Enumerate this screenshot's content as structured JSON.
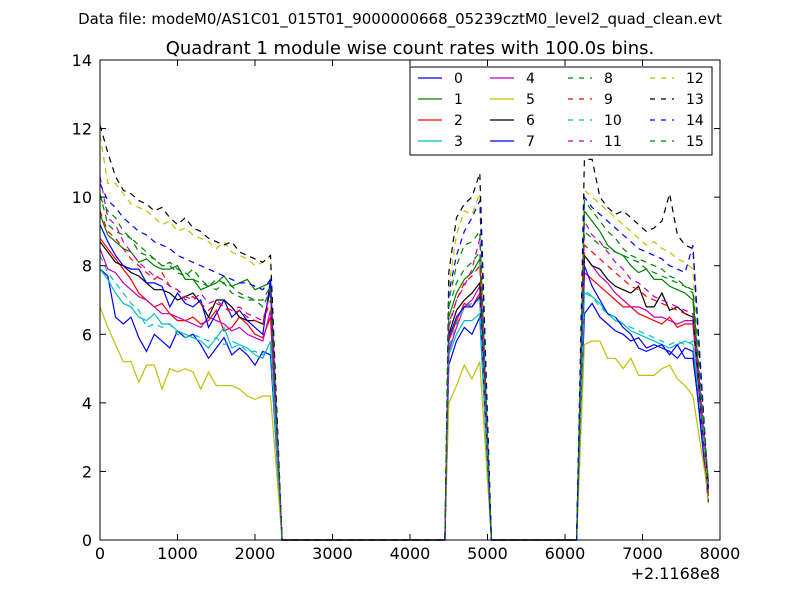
{
  "figure": {
    "suptitle": "Data file: modeM0/AS1C01_015T01_9000000668_05239cztM0_level2_quad_clean.evt",
    "offset_label": "+2.1168e8"
  },
  "chart_data": {
    "type": "line",
    "title": "Quadrant 1 module wise count rates with 100.0s bins.",
    "xlabel": "",
    "ylabel": "",
    "xlim": [
      0,
      8000
    ],
    "ylim": [
      0,
      14
    ],
    "x_ticks": [
      0,
      1000,
      2000,
      3000,
      4000,
      5000,
      6000,
      7000,
      8000
    ],
    "y_ticks": [
      0,
      2,
      4,
      6,
      8,
      10,
      12,
      14
    ],
    "x_offset": "+2.1168e8",
    "grid": false,
    "legend_position": "top-right",
    "legend_columns": 4,
    "segments": [
      {
        "start": 0,
        "n": 23,
        "step": 100,
        "drop_to": 2350
      },
      {
        "start": 4500,
        "n": 5,
        "step": 100,
        "rise_from": 4450,
        "drop_to": 5050
      },
      {
        "start": 6250,
        "n": 15,
        "step": 100,
        "rise_from": 6150,
        "drop_to": 7850
      }
    ],
    "series": [
      {
        "name": "0",
        "color": "#0000ff",
        "dash": false,
        "values": [
          [
            7.9,
            7.7,
            6.5,
            6.3,
            6.5,
            5.9,
            5.5,
            6.0,
            5.8,
            5.6,
            6.1,
            5.9,
            6.0,
            5.7,
            5.3,
            5.6,
            5.9,
            5.4,
            5.6,
            5.4,
            5.1,
            5.5,
            5.4
          ],
          [
            5.1,
            5.8,
            6.2,
            6.0,
            6.5
          ],
          [
            6.6,
            6.9,
            6.5,
            6.3,
            6.1,
            6.0,
            5.8,
            5.9,
            5.6,
            5.7,
            5.6,
            5.5,
            5.3,
            5.6,
            5.5
          ]
        ]
      },
      {
        "name": "1",
        "color": "#008000",
        "dash": false,
        "values": [
          [
            9.5,
            8.9,
            8.7,
            8.5,
            8.4,
            8.1,
            8.2,
            8.0,
            7.9,
            7.9,
            8.0,
            7.6,
            7.6,
            7.3,
            7.4,
            7.5,
            7.7,
            7.4,
            7.5,
            7.6,
            7.3,
            7.4,
            7.5
          ],
          [
            6.5,
            7.2,
            7.6,
            7.8,
            8.2
          ],
          [
            9.6,
            9.3,
            9.0,
            8.6,
            8.4,
            8.3,
            8.0,
            7.8,
            7.9,
            7.6,
            7.6,
            7.4,
            7.3,
            7.2,
            7.0
          ]
        ]
      },
      {
        "name": "2",
        "color": "#ff0000",
        "dash": false,
        "values": [
          [
            8.8,
            8.5,
            8.2,
            7.9,
            7.6,
            7.2,
            7.0,
            6.8,
            6.9,
            6.6,
            6.4,
            6.4,
            6.5,
            6.3,
            6.4,
            6.7,
            6.1,
            6.2,
            6.5,
            6.3,
            6.0,
            5.9,
            6.5
          ],
          [
            5.8,
            6.4,
            6.9,
            6.8,
            7.2
          ],
          [
            7.8,
            7.6,
            7.4,
            7.2,
            7.0,
            6.8,
            6.8,
            6.6,
            6.5,
            6.4,
            6.3,
            6.5,
            6.2,
            6.3,
            6.3
          ]
        ]
      },
      {
        "name": "3",
        "color": "#00bfbf",
        "dash": false,
        "values": [
          [
            7.9,
            7.6,
            7.2,
            6.9,
            6.8,
            6.5,
            6.4,
            6.6,
            6.3,
            6.3,
            6.1,
            6.0,
            5.9,
            5.8,
            5.6,
            5.9,
            6.2,
            5.6,
            5.7,
            5.6,
            5.4,
            5.3,
            5.8
          ],
          [
            5.4,
            6.0,
            6.4,
            6.4,
            6.6
          ],
          [
            7.2,
            7.1,
            6.9,
            6.6,
            6.4,
            6.3,
            6.1,
            6.0,
            5.9,
            5.8,
            5.7,
            5.6,
            5.7,
            5.8,
            5.7
          ]
        ]
      },
      {
        "name": "4",
        "color": "#bf00bf",
        "dash": false,
        "values": [
          [
            8.5,
            7.9,
            7.8,
            7.5,
            7.3,
            7.1,
            7.0,
            6.8,
            6.6,
            6.6,
            6.5,
            6.4,
            6.3,
            6.2,
            6.5,
            6.4,
            6.3,
            6.1,
            6.2,
            6.0,
            5.9,
            5.8,
            6.7
          ],
          [
            5.5,
            6.2,
            6.8,
            7.0,
            7.4
          ],
          [
            8.3,
            8.0,
            7.7,
            7.5,
            7.2,
            7.0,
            6.8,
            6.8,
            6.7,
            6.5,
            6.5,
            6.4,
            6.3,
            6.4,
            6.4
          ]
        ]
      },
      {
        "name": "5",
        "color": "#bfbf00",
        "dash": false,
        "values": [
          [
            6.8,
            6.2,
            5.7,
            5.2,
            5.2,
            4.6,
            5.1,
            5.1,
            4.4,
            5.0,
            4.9,
            5.0,
            4.9,
            4.4,
            4.9,
            4.5,
            4.5,
            4.5,
            4.4,
            4.2,
            4.1,
            4.2,
            4.2
          ],
          [
            4.0,
            4.5,
            5.1,
            4.7,
            5.2
          ],
          [
            5.7,
            5.8,
            5.8,
            5.3,
            5.3,
            5.0,
            5.3,
            4.8,
            4.8,
            4.8,
            5.0,
            5.1,
            4.7,
            4.5,
            4.2
          ]
        ]
      },
      {
        "name": "6",
        "color": "#000000",
        "dash": false,
        "values": [
          [
            8.7,
            8.4,
            8.1,
            8.0,
            7.8,
            7.7,
            7.5,
            7.3,
            7.3,
            7.2,
            7.0,
            7.1,
            7.2,
            6.9,
            6.5,
            7.0,
            7.0,
            6.8,
            6.5,
            6.4,
            6.4,
            6.3,
            7.3
          ],
          [
            6.0,
            6.7,
            7.0,
            7.2,
            7.5
          ],
          [
            8.3,
            8.0,
            7.9,
            7.6,
            7.4,
            7.3,
            7.2,
            7.4,
            6.8,
            6.8,
            7.2,
            6.7,
            6.8,
            6.6,
            6.5
          ]
        ]
      },
      {
        "name": "7",
        "color": "#0000ff",
        "dash": false,
        "values": [
          [
            9.2,
            8.7,
            8.3,
            8.0,
            7.9,
            7.9,
            7.5,
            7.5,
            7.4,
            6.8,
            7.2,
            6.9,
            6.8,
            7.0,
            6.2,
            6.6,
            7.0,
            6.5,
            6.7,
            6.4,
            6.2,
            6.0,
            7.6
          ],
          [
            5.9,
            6.5,
            6.8,
            6.8,
            7.1
          ],
          [
            8.0,
            7.4,
            7.0,
            6.6,
            6.5,
            6.2,
            6.0,
            5.6,
            5.5,
            5.6,
            5.7,
            5.4,
            5.7,
            5.3,
            5.3
          ]
        ]
      },
      {
        "name": "8",
        "color": "#008000",
        "dash": true,
        "values": [
          [
            10.1,
            9.2,
            9.0,
            8.9,
            8.8,
            8.4,
            8.3,
            8.2,
            8.0,
            8.0,
            7.8,
            7.7,
            7.9,
            7.6,
            7.4,
            7.6,
            7.5,
            7.4,
            7.2,
            7.1,
            7.0,
            7.0,
            7.4
          ],
          [
            6.8,
            7.5,
            7.9,
            8.1,
            8.4
          ],
          [
            9.0,
            8.8,
            8.6,
            8.5,
            8.4,
            8.3,
            8.2,
            8.1,
            7.9,
            7.8,
            7.7,
            7.6,
            7.5,
            7.4,
            7.2
          ]
        ]
      },
      {
        "name": "9",
        "color": "#ff0000",
        "dash": true,
        "values": [
          [
            9.6,
            9.0,
            8.8,
            8.5,
            8.2,
            8.0,
            7.8,
            7.6,
            7.8,
            7.4,
            7.3,
            7.0,
            7.1,
            6.9,
            6.7,
            6.9,
            6.8,
            6.6,
            6.7,
            6.5,
            6.4,
            6.3,
            7.0
          ],
          [
            6.3,
            7.0,
            7.5,
            7.7,
            8.0
          ],
          [
            8.6,
            8.4,
            8.2,
            8.0,
            7.8,
            7.6,
            7.4,
            7.3,
            7.1,
            7.0,
            6.9,
            6.8,
            6.7,
            6.6,
            6.6
          ]
        ]
      },
      {
        "name": "10",
        "color": "#00bfbf",
        "dash": true,
        "values": [
          [
            8.3,
            7.8,
            7.5,
            7.2,
            6.9,
            6.7,
            6.2,
            6.3,
            6.2,
            6.3,
            6.0,
            5.9,
            6.0,
            5.9,
            5.8,
            5.9,
            5.7,
            5.8,
            5.7,
            5.5,
            5.5,
            5.4,
            5.6
          ],
          [
            5.6,
            6.3,
            6.8,
            6.9,
            7.0
          ],
          [
            7.3,
            7.1,
            6.8,
            6.6,
            6.5,
            6.3,
            6.2,
            6.1,
            6.0,
            5.9,
            5.8,
            5.7,
            5.8,
            5.7,
            5.8
          ]
        ]
      },
      {
        "name": "11",
        "color": "#bf00bf",
        "dash": true,
        "values": [
          [
            10.6,
            9.4,
            9.2,
            8.7,
            8.4,
            8.1,
            7.9,
            7.7,
            7.6,
            7.4,
            7.3,
            7.1,
            7.0,
            7.2,
            6.9,
            7.0,
            6.8,
            6.7,
            6.8,
            6.6,
            6.5,
            6.4,
            7.2
          ],
          [
            6.2,
            7.0,
            7.4,
            7.9,
            8.8
          ],
          [
            9.3,
            8.9,
            8.7,
            8.4,
            8.1,
            7.9,
            7.6,
            7.5,
            7.3,
            7.1,
            7.0,
            6.9,
            6.8,
            6.7,
            6.6
          ]
        ]
      },
      {
        "name": "12",
        "color": "#bfbf00",
        "dash": true,
        "values": [
          [
            11.8,
            10.4,
            10.4,
            10.1,
            9.8,
            9.7,
            9.6,
            9.4,
            9.2,
            9.3,
            9.0,
            9.1,
            8.9,
            8.8,
            8.7,
            8.5,
            8.7,
            8.4,
            8.3,
            8.2,
            8.0,
            8.1,
            8.3
          ],
          [
            7.4,
            8.9,
            9.6,
            9.5,
            10.1
          ],
          [
            10.2,
            10.0,
            9.8,
            9.6,
            9.4,
            9.2,
            9.0,
            8.8,
            8.6,
            8.7,
            8.5,
            8.4,
            8.2,
            8.1,
            7.9
          ]
        ]
      },
      {
        "name": "13",
        "color": "#000000",
        "dash": true,
        "values": [
          [
            12.1,
            11.3,
            10.6,
            10.2,
            10.1,
            9.9,
            9.8,
            9.6,
            9.7,
            9.4,
            9.2,
            9.4,
            9.1,
            9.0,
            8.8,
            8.7,
            8.6,
            8.7,
            8.4,
            8.3,
            8.2,
            8.1,
            8.3
          ],
          [
            7.8,
            9.4,
            9.8,
            10.0,
            10.7
          ],
          [
            11.1,
            11.1,
            10.0,
            9.7,
            9.5,
            9.6,
            9.4,
            9.2,
            9.0,
            9.1,
            9.3,
            10.1,
            8.9,
            8.6,
            8.5
          ]
        ]
      },
      {
        "name": "14",
        "color": "#0000ff",
        "dash": true,
        "values": [
          [
            10.4,
            9.9,
            9.7,
            9.4,
            9.2,
            9.0,
            8.9,
            8.7,
            8.6,
            8.5,
            8.3,
            8.2,
            8.1,
            8.0,
            7.9,
            7.8,
            7.7,
            7.6,
            7.5,
            7.5,
            7.4,
            7.3,
            7.6
          ],
          [
            7.2,
            8.3,
            9.0,
            9.4,
            9.9
          ],
          [
            10.0,
            9.7,
            9.5,
            9.3,
            9.1,
            8.9,
            8.7,
            8.5,
            8.4,
            8.3,
            8.2,
            8.0,
            7.9,
            7.8,
            8.6
          ]
        ]
      },
      {
        "name": "15",
        "color": "#008000",
        "dash": true,
        "values": [
          [
            10.0,
            9.6,
            9.4,
            9.0,
            8.8,
            8.6,
            8.4,
            8.2,
            8.0,
            8.1,
            7.9,
            7.8,
            7.6,
            7.5,
            7.4,
            7.3,
            7.5,
            7.2,
            7.1,
            7.0,
            7.0,
            6.8,
            7.3
          ],
          [
            7.0,
            8.0,
            8.6,
            8.7,
            9.0
          ],
          [
            9.9,
            9.6,
            9.3,
            9.0,
            8.8,
            8.5,
            8.3,
            8.2,
            8.1,
            8.0,
            7.9,
            7.7,
            7.6,
            7.4,
            7.3
          ]
        ]
      }
    ]
  }
}
